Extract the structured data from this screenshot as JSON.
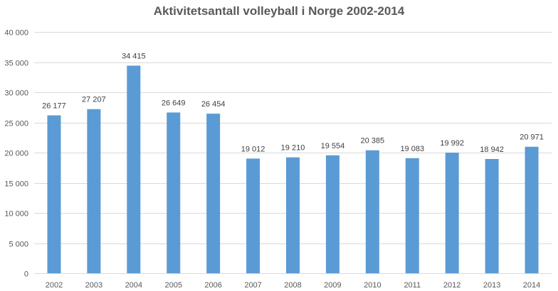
{
  "chart_data": {
    "type": "bar",
    "title": "Aktivitetsantall volleyball i Norge 2002-2014",
    "xlabel": "",
    "ylabel": "",
    "categories": [
      "2002",
      "2003",
      "2004",
      "2005",
      "2006",
      "2007",
      "2008",
      "2009",
      "2010",
      "2011",
      "2012",
      "2013",
      "2014"
    ],
    "values": [
      26177,
      27207,
      34415,
      26649,
      26454,
      19012,
      19210,
      19554,
      20385,
      19083,
      19992,
      18942,
      20971
    ],
    "data_labels": [
      "26 177",
      "27 207",
      "34 415",
      "26 649",
      "26 454",
      "19 012",
      "19 210",
      "19 554",
      "20 385",
      "19 083",
      "19 992",
      "18 942",
      "20 971"
    ],
    "ylim": [
      0,
      40000
    ],
    "yticks": [
      0,
      5000,
      10000,
      15000,
      20000,
      25000,
      30000,
      35000,
      40000
    ],
    "ytick_labels": [
      "0",
      "5 000",
      "10 000",
      "15 000",
      "20 000",
      "25 000",
      "30 000",
      "35 000",
      "40 000"
    ],
    "grid": true,
    "legend": "none",
    "colors": {
      "bar": "#5B9BD5",
      "grid": "#D9D9D9",
      "text": "#595959",
      "label": "#404040"
    }
  }
}
